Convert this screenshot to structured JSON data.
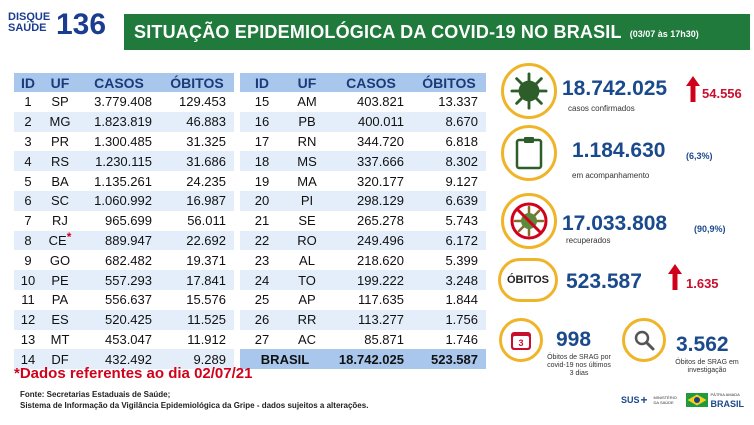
{
  "header": {
    "logo_word_top": "DISQUE",
    "logo_word_bottom": "SAÚDE",
    "logo_number": "136",
    "title": "SITUAÇÃO EPIDEMIOLÓGICA DA COVID-19 NO BRASIL",
    "date": "(03/07 às 17h30)"
  },
  "table": {
    "headers": [
      "ID",
      "UF",
      "CASOS",
      "ÓBITOS"
    ],
    "left_rows": [
      {
        "id": "1",
        "uf": "SP",
        "casos": "3.779.408",
        "obitos": "129.453"
      },
      {
        "id": "2",
        "uf": "MG",
        "casos": "1.823.819",
        "obitos": "46.883"
      },
      {
        "id": "3",
        "uf": "PR",
        "casos": "1.300.485",
        "obitos": "31.325"
      },
      {
        "id": "4",
        "uf": "RS",
        "casos": "1.230.115",
        "obitos": "31.686"
      },
      {
        "id": "5",
        "uf": "BA",
        "casos": "1.135.261",
        "obitos": "24.235"
      },
      {
        "id": "6",
        "uf": "SC",
        "casos": "1.060.992",
        "obitos": "16.987"
      },
      {
        "id": "7",
        "uf": "RJ",
        "casos": "965.699",
        "obitos": "56.011"
      },
      {
        "id": "8",
        "uf": "CE",
        "casos": "889.947",
        "obitos": "22.692"
      },
      {
        "id": "9",
        "uf": "GO",
        "casos": "682.482",
        "obitos": "19.371"
      },
      {
        "id": "10",
        "uf": "PE",
        "casos": "557.293",
        "obitos": "17.841"
      },
      {
        "id": "11",
        "uf": "PA",
        "casos": "556.637",
        "obitos": "15.576"
      },
      {
        "id": "12",
        "uf": "ES",
        "casos": "520.425",
        "obitos": "11.525"
      },
      {
        "id": "13",
        "uf": "MT",
        "casos": "453.047",
        "obitos": "11.912"
      },
      {
        "id": "14",
        "uf": "DF",
        "casos": "432.492",
        "obitos": "9.289"
      }
    ],
    "right_rows": [
      {
        "id": "15",
        "uf": "AM",
        "casos": "403.821",
        "obitos": "13.337"
      },
      {
        "id": "16",
        "uf": "PB",
        "casos": "400.011",
        "obitos": "8.670"
      },
      {
        "id": "17",
        "uf": "RN",
        "casos": "344.720",
        "obitos": "6.818"
      },
      {
        "id": "18",
        "uf": "MS",
        "casos": "337.666",
        "obitos": "8.302"
      },
      {
        "id": "19",
        "uf": "MA",
        "casos": "320.177",
        "obitos": "9.127"
      },
      {
        "id": "20",
        "uf": "PI",
        "casos": "298.129",
        "obitos": "6.639"
      },
      {
        "id": "21",
        "uf": "SE",
        "casos": "265.278",
        "obitos": "5.743"
      },
      {
        "id": "22",
        "uf": "RO",
        "casos": "249.496",
        "obitos": "6.172"
      },
      {
        "id": "23",
        "uf": "AL",
        "casos": "218.620",
        "obitos": "5.399"
      },
      {
        "id": "24",
        "uf": "TO",
        "casos": "199.222",
        "obitos": "3.248"
      },
      {
        "id": "25",
        "uf": "AP",
        "casos": "117.635",
        "obitos": "1.844"
      },
      {
        "id": "26",
        "uf": "RR",
        "casos": "113.277",
        "obitos": "1.756"
      },
      {
        "id": "27",
        "uf": "AC",
        "casos": "85.871",
        "obitos": "1.746"
      }
    ],
    "total": {
      "label": "BRASIL",
      "casos": "18.742.025",
      "obitos": "523.587"
    },
    "ce_marker": "*"
  },
  "stats": {
    "confirmed": {
      "value": "18.742.025",
      "label": "casos confirmados",
      "delta": "54.556",
      "icon": "virus-icon"
    },
    "monitoring": {
      "value": "1.184.630",
      "pct": "(6,3%)",
      "label": "em acompanhamento",
      "icon": "clipboard-icon"
    },
    "recovered": {
      "value": "17.033.808",
      "pct": "(90,9%)",
      "label": "recuperados",
      "icon": "no-virus-icon"
    },
    "deaths": {
      "badge": "ÓBITOS",
      "value": "523.587",
      "delta": "1.635"
    },
    "srag_deaths": {
      "value": "998",
      "label_lines": [
        "Óbitos de SRAG por",
        "covid-19 nos últimos",
        "3 dias"
      ],
      "icon": "calendar-icon",
      "icon_text": "3"
    },
    "investigation": {
      "value": "3.562",
      "label_lines": [
        "Óbitos de SRAG em",
        "investigação"
      ],
      "icon": "magnifier-icon"
    }
  },
  "footnote": "*Dados referentes ao dia 02/07/21",
  "source_lines": [
    "Fonte: Secretarias Estaduais de Saúde;",
    "Sistema de Informação da Vigilância Epidemiológica da Gripe - dados sujeitos a alterações."
  ],
  "footer": {
    "sus_label": "SUS",
    "ministry_label": "MINISTÉRIO DA SAÚDE",
    "patria_label": "PÁTRIA AMADA",
    "brasil_label": "BRASIL"
  },
  "colors": {
    "title_bg": "#1f7a3b",
    "header_blue": "#a9c7ec",
    "alt_row": "#e3eefa",
    "accent_gold": "#f0b429",
    "value_blue": "#1b4a8c",
    "alert_red": "#d0021b"
  }
}
